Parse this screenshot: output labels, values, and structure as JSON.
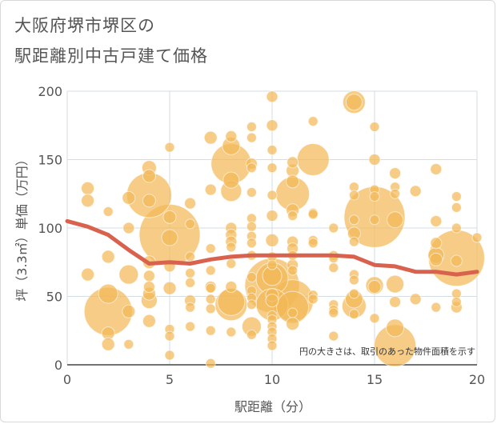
{
  "chart_data": {
    "type": "scatter",
    "title_lines": [
      "大阪府堺市堺区の",
      "駅距離別中古戸建て価格"
    ],
    "xlabel": "駅距離（分）",
    "ylabel": "坪（3.3㎡）単価（万円）",
    "xlim": [
      0,
      20
    ],
    "ylim": [
      0,
      200
    ],
    "x_ticks": [
      "0",
      "5",
      "10",
      "15",
      "20"
    ],
    "y_ticks": [
      "0",
      "50",
      "100",
      "150",
      "200"
    ],
    "grid": true,
    "annotation": "円の大きさは、取引のあった物件面積を示す",
    "colors": {
      "bubble": "#f2b857",
      "line": "#d9624e",
      "grid": "#d3dde6"
    },
    "bubbles": [
      {
        "x": 1,
        "y": 129,
        "s": 8
      },
      {
        "x": 1,
        "y": 120,
        "s": 8
      },
      {
        "x": 1,
        "y": 66,
        "s": 8
      },
      {
        "x": 2,
        "y": 52,
        "s": 12
      },
      {
        "x": 2,
        "y": 39,
        "s": 30
      },
      {
        "x": 2,
        "y": 23,
        "s": 8
      },
      {
        "x": 2,
        "y": 15,
        "s": 8
      },
      {
        "x": 2,
        "y": 79,
        "s": 8
      },
      {
        "x": 2,
        "y": 112,
        "s": 6
      },
      {
        "x": 3,
        "y": 122,
        "s": 8
      },
      {
        "x": 3,
        "y": 100,
        "s": 7
      },
      {
        "x": 3,
        "y": 66,
        "s": 12
      },
      {
        "x": 3,
        "y": 39,
        "s": 8
      },
      {
        "x": 3,
        "y": 15,
        "s": 6
      },
      {
        "x": 4,
        "y": 144,
        "s": 9
      },
      {
        "x": 4,
        "y": 138,
        "s": 8
      },
      {
        "x": 4,
        "y": 124,
        "s": 28
      },
      {
        "x": 4,
        "y": 120,
        "s": 8
      },
      {
        "x": 4,
        "y": 75,
        "s": 8
      },
      {
        "x": 4,
        "y": 65,
        "s": 7
      },
      {
        "x": 4,
        "y": 57,
        "s": 7
      },
      {
        "x": 4,
        "y": 52,
        "s": 8
      },
      {
        "x": 4,
        "y": 47,
        "s": 10
      },
      {
        "x": 4,
        "y": 32,
        "s": 8
      },
      {
        "x": 5,
        "y": 159,
        "s": 6
      },
      {
        "x": 5,
        "y": 108,
        "s": 8
      },
      {
        "x": 5,
        "y": 95,
        "s": 38
      },
      {
        "x": 5,
        "y": 93,
        "s": 10
      },
      {
        "x": 5,
        "y": 72,
        "s": 7
      },
      {
        "x": 5,
        "y": 56,
        "s": 8
      },
      {
        "x": 5,
        "y": 26,
        "s": 6
      },
      {
        "x": 5,
        "y": 21,
        "s": 6
      },
      {
        "x": 5,
        "y": 7,
        "s": 6
      },
      {
        "x": 6,
        "y": 118,
        "s": 7
      },
      {
        "x": 6,
        "y": 103,
        "s": 6
      },
      {
        "x": 6,
        "y": 79,
        "s": 6
      },
      {
        "x": 6,
        "y": 67,
        "s": 6
      },
      {
        "x": 6,
        "y": 60,
        "s": 6
      },
      {
        "x": 6,
        "y": 47,
        "s": 7
      },
      {
        "x": 6,
        "y": 42,
        "s": 6
      },
      {
        "x": 6,
        "y": 28,
        "s": 6
      },
      {
        "x": 7,
        "y": 166,
        "s": 8
      },
      {
        "x": 7,
        "y": 128,
        "s": 7
      },
      {
        "x": 7,
        "y": 85,
        "s": 6
      },
      {
        "x": 7,
        "y": 69,
        "s": 6
      },
      {
        "x": 7,
        "y": 57,
        "s": 7
      },
      {
        "x": 7,
        "y": 56,
        "s": 6
      },
      {
        "x": 7,
        "y": 48,
        "s": 6
      },
      {
        "x": 7,
        "y": 41,
        "s": 6
      },
      {
        "x": 7,
        "y": 25,
        "s": 6
      },
      {
        "x": 7,
        "y": 1,
        "s": 6
      },
      {
        "x": 8,
        "y": 167,
        "s": 7
      },
      {
        "x": 8,
        "y": 160,
        "s": 11
      },
      {
        "x": 8,
        "y": 147,
        "s": 25
      },
      {
        "x": 8,
        "y": 135,
        "s": 10
      },
      {
        "x": 8,
        "y": 127,
        "s": 13
      },
      {
        "x": 8,
        "y": 100,
        "s": 7
      },
      {
        "x": 8,
        "y": 95,
        "s": 7
      },
      {
        "x": 8,
        "y": 90,
        "s": 7
      },
      {
        "x": 8,
        "y": 86,
        "s": 6
      },
      {
        "x": 8,
        "y": 74,
        "s": 6
      },
      {
        "x": 8,
        "y": 57,
        "s": 7
      },
      {
        "x": 8,
        "y": 46,
        "s": 17
      },
      {
        "x": 8,
        "y": 44,
        "s": 20
      },
      {
        "x": 8,
        "y": 24,
        "s": 6
      },
      {
        "x": 9,
        "y": 174,
        "s": 6
      },
      {
        "x": 9,
        "y": 166,
        "s": 6
      },
      {
        "x": 9,
        "y": 147,
        "s": 7
      },
      {
        "x": 9,
        "y": 144,
        "s": 6
      },
      {
        "x": 9,
        "y": 126,
        "s": 6
      },
      {
        "x": 9,
        "y": 107,
        "s": 6
      },
      {
        "x": 9,
        "y": 101,
        "s": 6
      },
      {
        "x": 9,
        "y": 94,
        "s": 6
      },
      {
        "x": 9,
        "y": 89,
        "s": 6
      },
      {
        "x": 9,
        "y": 80,
        "s": 6
      },
      {
        "x": 9,
        "y": 64,
        "s": 6
      },
      {
        "x": 9,
        "y": 54,
        "s": 6
      },
      {
        "x": 9,
        "y": 49,
        "s": 6
      },
      {
        "x": 9,
        "y": 44,
        "s": 6
      },
      {
        "x": 9,
        "y": 28,
        "s": 12
      },
      {
        "x": 9,
        "y": 22,
        "s": 6
      },
      {
        "x": 10,
        "y": 196,
        "s": 7
      },
      {
        "x": 10,
        "y": 175,
        "s": 7
      },
      {
        "x": 10,
        "y": 157,
        "s": 6
      },
      {
        "x": 10,
        "y": 144,
        "s": 6
      },
      {
        "x": 10,
        "y": 124,
        "s": 6
      },
      {
        "x": 10,
        "y": 109,
        "s": 7
      },
      {
        "x": 10,
        "y": 91,
        "s": 8
      },
      {
        "x": 10,
        "y": 79,
        "s": 6
      },
      {
        "x": 10,
        "y": 73,
        "s": 6
      },
      {
        "x": 10,
        "y": 65,
        "s": 12
      },
      {
        "x": 10,
        "y": 63,
        "s": 20
      },
      {
        "x": 10,
        "y": 58,
        "s": 34
      },
      {
        "x": 10,
        "y": 51,
        "s": 8
      },
      {
        "x": 10,
        "y": 47,
        "s": 8
      },
      {
        "x": 10,
        "y": 44,
        "s": 20
      },
      {
        "x": 10,
        "y": 36,
        "s": 6
      },
      {
        "x": 10,
        "y": 33,
        "s": 6
      },
      {
        "x": 10,
        "y": 28,
        "s": 6
      },
      {
        "x": 10,
        "y": 24,
        "s": 6
      },
      {
        "x": 10,
        "y": 19,
        "s": 6
      },
      {
        "x": 10,
        "y": 14,
        "s": 6
      },
      {
        "x": 11,
        "y": 148,
        "s": 7
      },
      {
        "x": 11,
        "y": 142,
        "s": 8
      },
      {
        "x": 11,
        "y": 134,
        "s": 8
      },
      {
        "x": 11,
        "y": 125,
        "s": 21
      },
      {
        "x": 11,
        "y": 113,
        "s": 8
      },
      {
        "x": 11,
        "y": 109,
        "s": 6
      },
      {
        "x": 11,
        "y": 90,
        "s": 7
      },
      {
        "x": 11,
        "y": 85,
        "s": 7
      },
      {
        "x": 11,
        "y": 80,
        "s": 6
      },
      {
        "x": 11,
        "y": 73,
        "s": 7
      },
      {
        "x": 11,
        "y": 69,
        "s": 6
      },
      {
        "x": 11,
        "y": 47,
        "s": 26
      },
      {
        "x": 11,
        "y": 42,
        "s": 20
      },
      {
        "x": 11,
        "y": 38,
        "s": 6
      },
      {
        "x": 11,
        "y": 30,
        "s": 8
      },
      {
        "x": 12,
        "y": 178,
        "s": 6
      },
      {
        "x": 12,
        "y": 150,
        "s": 20
      },
      {
        "x": 12,
        "y": 111,
        "s": 6
      },
      {
        "x": 12,
        "y": 110,
        "s": 6
      },
      {
        "x": 12,
        "y": 91,
        "s": 6
      },
      {
        "x": 12,
        "y": 89,
        "s": 6
      },
      {
        "x": 12,
        "y": 51,
        "s": 6
      },
      {
        "x": 12,
        "y": 48,
        "s": 6
      },
      {
        "x": 13,
        "y": 100,
        "s": 6
      },
      {
        "x": 13,
        "y": 80,
        "s": 6
      },
      {
        "x": 13,
        "y": 78,
        "s": 6
      },
      {
        "x": 13,
        "y": 71,
        "s": 6
      },
      {
        "x": 13,
        "y": 44,
        "s": 6
      },
      {
        "x": 13,
        "y": 40,
        "s": 6
      },
      {
        "x": 13,
        "y": 38,
        "s": 6
      },
      {
        "x": 13,
        "y": 21,
        "s": 6
      },
      {
        "x": 14,
        "y": 192,
        "s": 14
      },
      {
        "x": 14,
        "y": 192,
        "s": 10
      },
      {
        "x": 14,
        "y": 130,
        "s": 6
      },
      {
        "x": 14,
        "y": 124,
        "s": 6
      },
      {
        "x": 14,
        "y": 106,
        "s": 6
      },
      {
        "x": 14,
        "y": 96,
        "s": 8
      },
      {
        "x": 14,
        "y": 90,
        "s": 6
      },
      {
        "x": 14,
        "y": 66,
        "s": 6
      },
      {
        "x": 14,
        "y": 62,
        "s": 6
      },
      {
        "x": 14,
        "y": 52,
        "s": 6
      },
      {
        "x": 14,
        "y": 48,
        "s": 11
      },
      {
        "x": 14,
        "y": 43,
        "s": 15
      },
      {
        "x": 14,
        "y": 37,
        "s": 6
      },
      {
        "x": 15,
        "y": 174,
        "s": 6
      },
      {
        "x": 15,
        "y": 150,
        "s": 7
      },
      {
        "x": 15,
        "y": 128,
        "s": 6
      },
      {
        "x": 15,
        "y": 123,
        "s": 6
      },
      {
        "x": 15,
        "y": 108,
        "s": 38
      },
      {
        "x": 15,
        "y": 106,
        "s": 6
      },
      {
        "x": 15,
        "y": 58,
        "s": 11
      },
      {
        "x": 15,
        "y": 57,
        "s": 8
      },
      {
        "x": 15,
        "y": 34,
        "s": 6
      },
      {
        "x": 16,
        "y": 140,
        "s": 7
      },
      {
        "x": 16,
        "y": 130,
        "s": 6
      },
      {
        "x": 16,
        "y": 125,
        "s": 6
      },
      {
        "x": 16,
        "y": 106,
        "s": 10
      },
      {
        "x": 16,
        "y": 59,
        "s": 11
      },
      {
        "x": 16,
        "y": 46,
        "s": 7
      },
      {
        "x": 16,
        "y": 27,
        "s": 11
      },
      {
        "x": 16,
        "y": 14,
        "s": 26
      },
      {
        "x": 17,
        "y": 127,
        "s": 7
      },
      {
        "x": 17,
        "y": 48,
        "s": 7
      },
      {
        "x": 18,
        "y": 143,
        "s": 7
      },
      {
        "x": 18,
        "y": 105,
        "s": 7
      },
      {
        "x": 18,
        "y": 89,
        "s": 7
      },
      {
        "x": 18,
        "y": 80,
        "s": 10
      },
      {
        "x": 18,
        "y": 77,
        "s": 8
      },
      {
        "x": 18,
        "y": 42,
        "s": 6
      },
      {
        "x": 19,
        "y": 123,
        "s": 6
      },
      {
        "x": 19,
        "y": 115,
        "s": 6
      },
      {
        "x": 19,
        "y": 100,
        "s": 6
      },
      {
        "x": 19,
        "y": 78,
        "s": 35
      },
      {
        "x": 19,
        "y": 76,
        "s": 7
      },
      {
        "x": 19,
        "y": 52,
        "s": 6
      },
      {
        "x": 19,
        "y": 46,
        "s": 6
      },
      {
        "x": 19,
        "y": 42,
        "s": 7
      },
      {
        "x": 20,
        "y": 93,
        "s": 6
      }
    ],
    "trend": {
      "x": [
        0,
        1,
        2,
        3,
        4,
        5,
        6,
        7,
        8,
        9,
        10,
        11,
        12,
        13,
        14,
        15,
        16,
        17,
        18,
        19,
        20
      ],
      "y": [
        105,
        101,
        95,
        84,
        74,
        75,
        74,
        77,
        79,
        80,
        80,
        80,
        80,
        80,
        79,
        73,
        72,
        68,
        68,
        66,
        68
      ]
    }
  }
}
